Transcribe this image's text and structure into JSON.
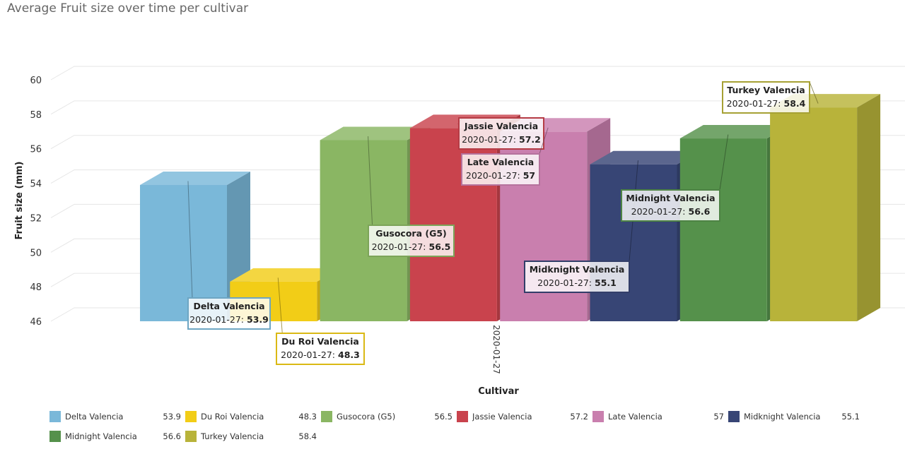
{
  "chart_data": {
    "type": "bar",
    "title": "Average Fruit size over time per cultivar",
    "xlabel": "Cultivar",
    "ylabel": "Fruit size (mm)",
    "categories": [
      "2020-01-27"
    ],
    "ylim": [
      46,
      60
    ],
    "yticks": [
      46,
      48,
      50,
      52,
      54,
      56,
      58,
      60
    ],
    "grid": true,
    "three_d": true,
    "legend_position": "bottom",
    "series": [
      {
        "name": "Delta Valencia",
        "values": [
          53.9
        ],
        "color": "#7ab8d9",
        "value_label": "53.9"
      },
      {
        "name": "Du Roi Valencia",
        "values": [
          48.3
        ],
        "color": "#f2cd17",
        "value_label": "48.3"
      },
      {
        "name": "Gusocora (G5)",
        "values": [
          56.5
        ],
        "color": "#8ab663",
        "value_label": "56.5"
      },
      {
        "name": "Jassie Valencia",
        "values": [
          57.2
        ],
        "color": "#c9434d",
        "value_label": "57.2"
      },
      {
        "name": "Late Valencia",
        "values": [
          57
        ],
        "color": "#c97fae",
        "value_label": "57"
      },
      {
        "name": "Midknight Valencia",
        "values": [
          55.1
        ],
        "color": "#374575",
        "value_label": "55.1"
      },
      {
        "name": "Midnight Valencia",
        "values": [
          56.6
        ],
        "color": "#55914b",
        "value_label": "56.6"
      },
      {
        "name": "Turkey Valencia",
        "values": [
          58.4
        ],
        "color": "#b8b33a",
        "value_label": "58.4"
      }
    ]
  }
}
